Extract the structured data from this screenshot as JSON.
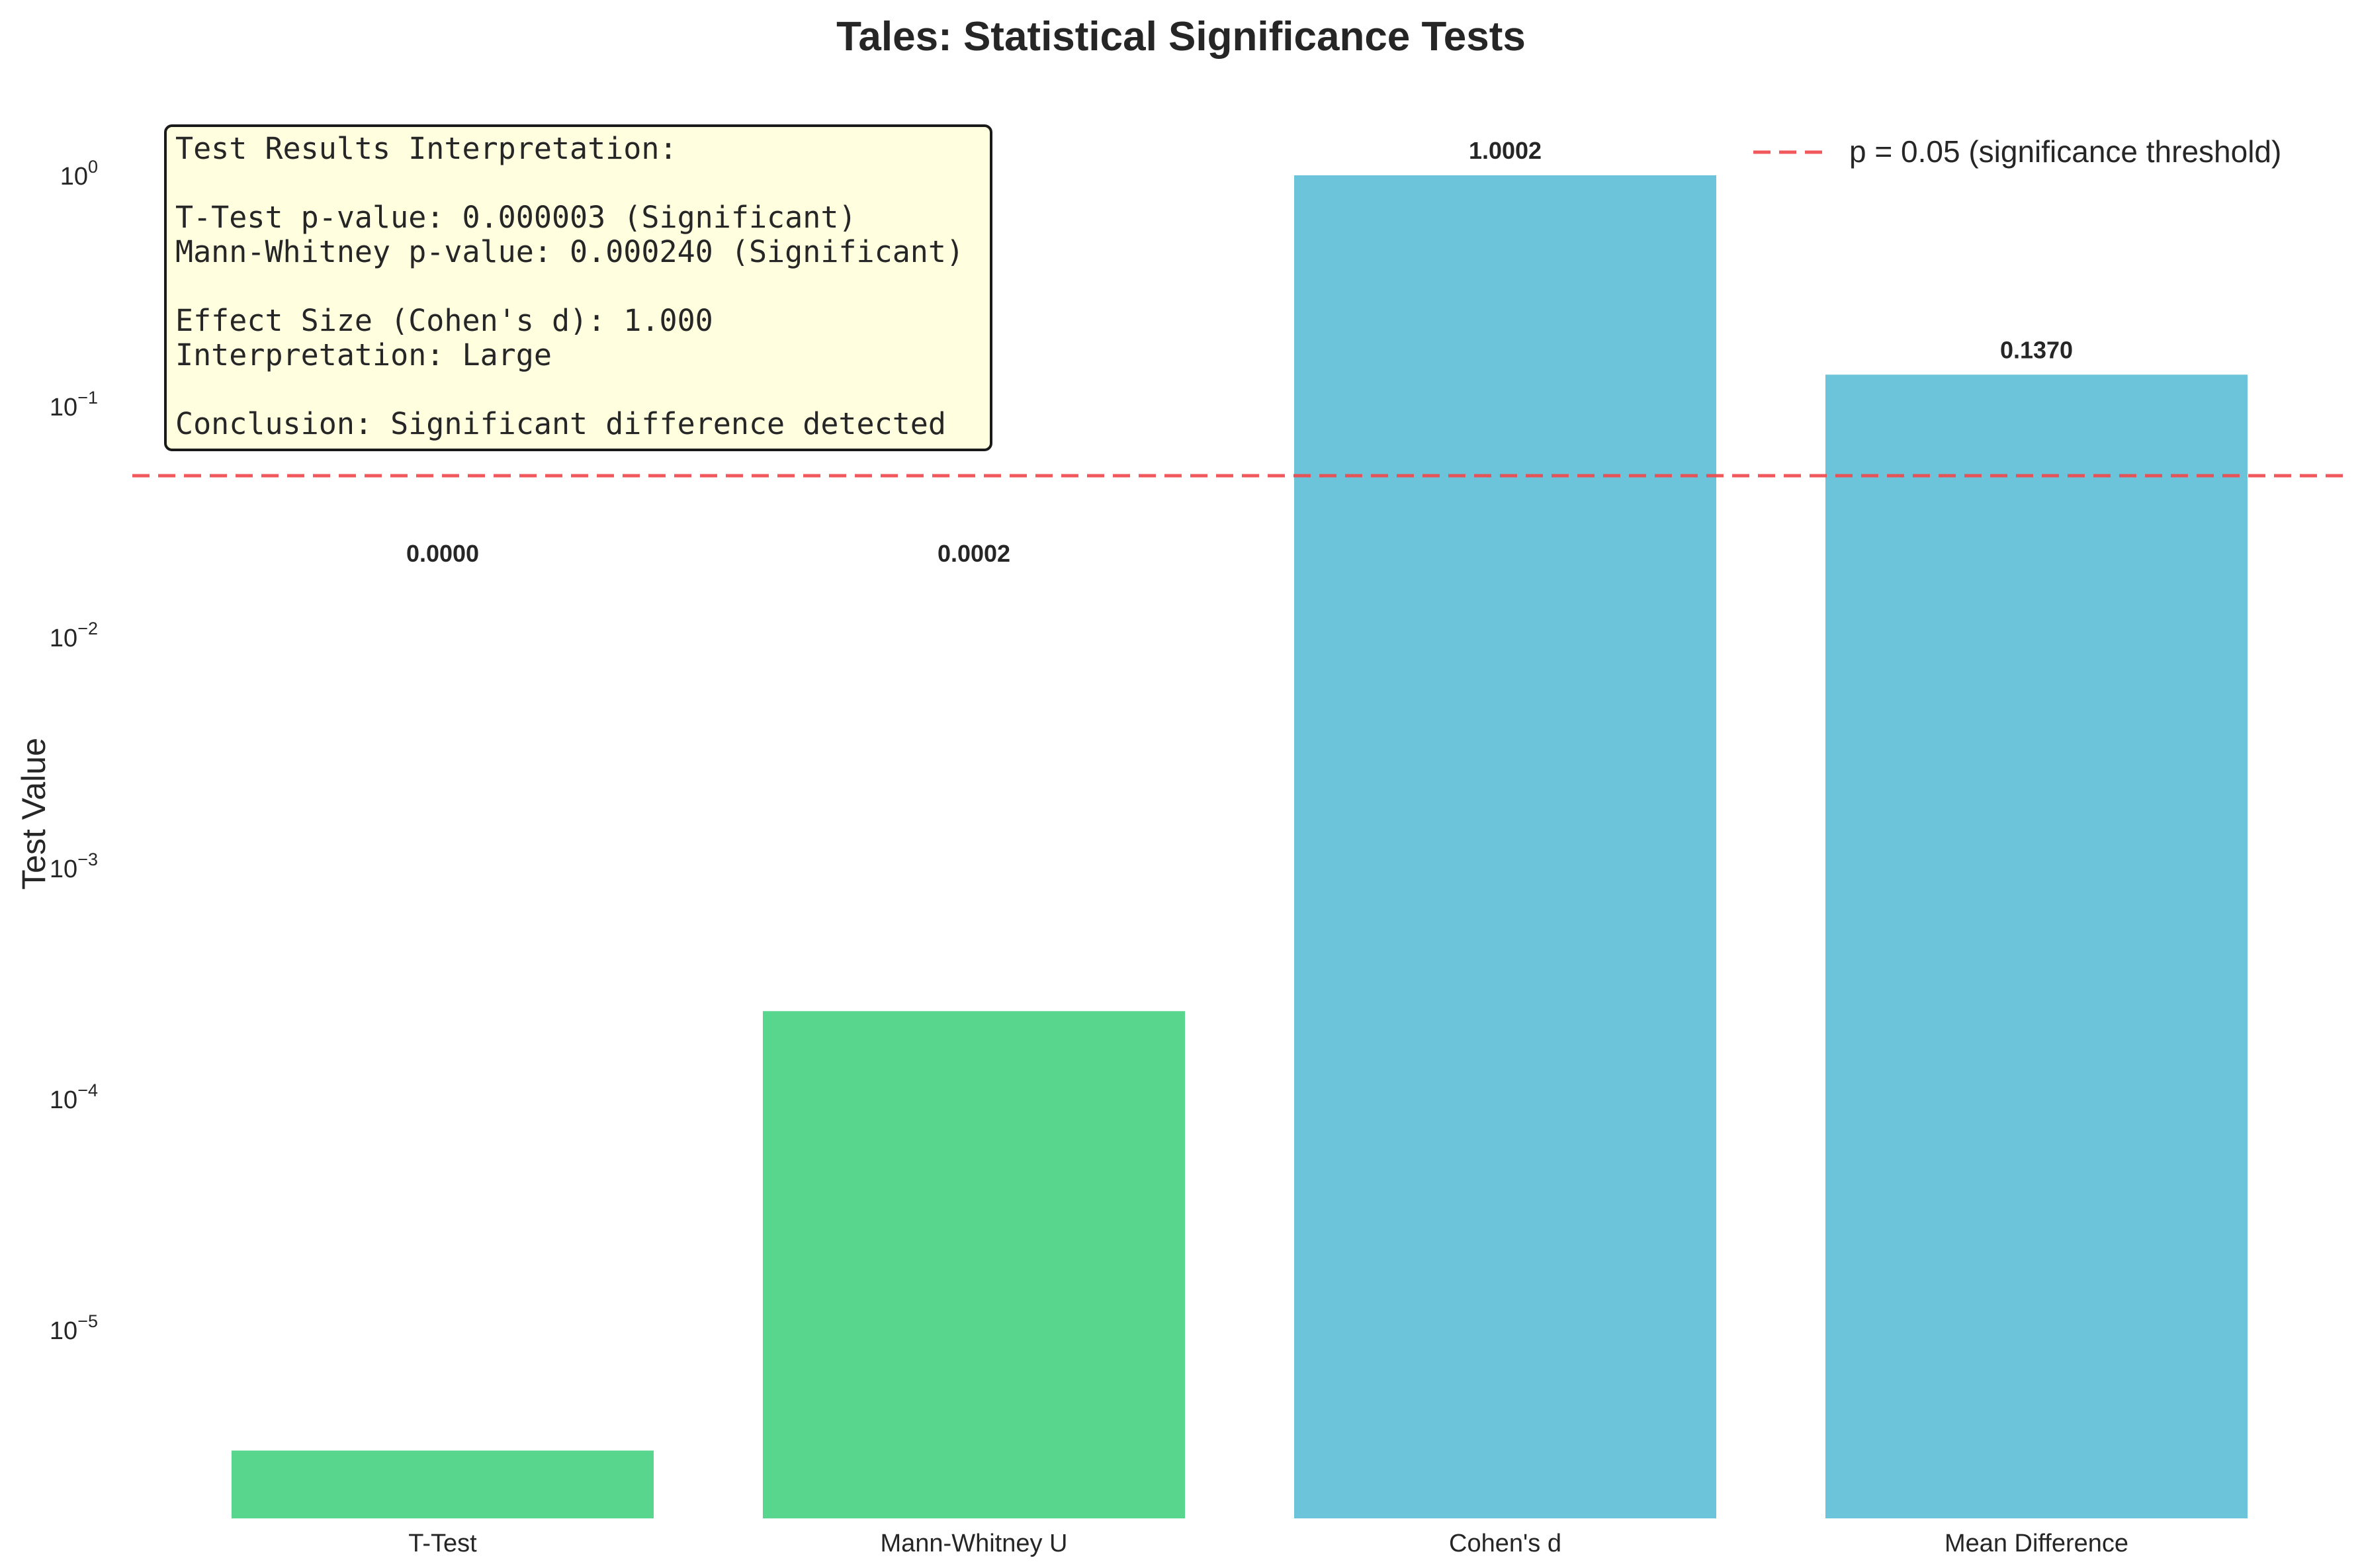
{
  "chart_data": {
    "type": "bar",
    "title": "Tales: Statistical Significance Tests",
    "xlabel": "",
    "ylabel": "Test Value",
    "yscale": "log",
    "ylim": [
      1.5e-06,
      2
    ],
    "yticks": [
      {
        "value": 1,
        "base": "10",
        "exp": "0"
      },
      {
        "value": 0.1,
        "base": "10",
        "exp": "−1"
      },
      {
        "value": 0.01,
        "base": "10",
        "exp": "−2"
      },
      {
        "value": 0.001,
        "base": "10",
        "exp": "−3"
      },
      {
        "value": 0.0001,
        "base": "10",
        "exp": "−4"
      },
      {
        "value": 1e-05,
        "base": "10",
        "exp": "−5"
      }
    ],
    "categories": [
      "T-Test",
      "Mann-Whitney U",
      "Cohen's d",
      "Mean Difference"
    ],
    "values": [
      3e-06,
      0.00024,
      1.0002,
      0.137
    ],
    "value_labels": [
      "0.0000",
      "0.0002",
      "1.0002",
      "0.1370"
    ],
    "bar_colors": [
      "#58d68d",
      "#58d68d",
      "#6bc4da",
      "#6bc4da"
    ],
    "threshold": {
      "value": 0.05,
      "color": "#f0474a",
      "label": "p = 0.05 (significance threshold)"
    },
    "legend_position": "top-right",
    "grid": false,
    "annotation": {
      "lines": [
        "Test Results Interpretation:",
        "",
        "T-Test p-value: 0.000003 (Significant)",
        "Mann-Whitney p-value: 0.000240 (Significant)",
        "",
        "Effect Size (Cohen's d): 1.000",
        "Interpretation: Large",
        "",
        "Conclusion: Significant difference detected"
      ],
      "background": "#ffffe0",
      "position": "top-left"
    }
  }
}
